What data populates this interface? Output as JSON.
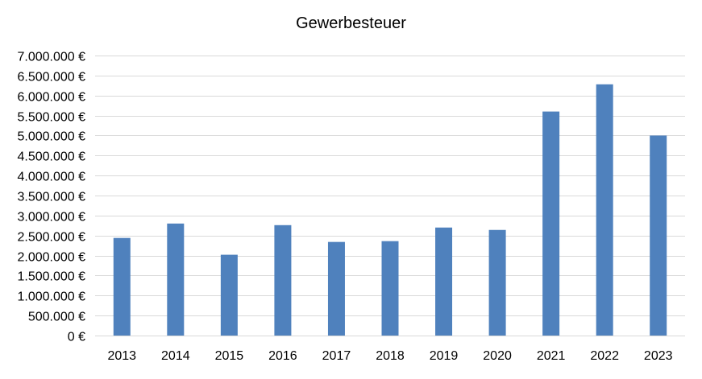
{
  "chart_data": {
    "type": "bar",
    "title": "Gewerbesteuer",
    "categories": [
      "2013",
      "2014",
      "2015",
      "2016",
      "2017",
      "2018",
      "2019",
      "2020",
      "2021",
      "2022",
      "2023"
    ],
    "series": [
      {
        "values": [
          2440000,
          2800000,
          2020000,
          2760000,
          2340000,
          2360000,
          2700000,
          2640000,
          5600000,
          6280000,
          5000000
        ],
        "color": "#4f81bd"
      }
    ],
    "ylim": [
      0,
      7000000
    ],
    "yticks": [
      0,
      500000,
      1000000,
      1500000,
      2000000,
      2500000,
      3000000,
      3500000,
      4000000,
      4500000,
      5000000,
      5500000,
      6000000,
      6500000,
      7000000
    ],
    "ytick_labels": [
      "0 €",
      "500.000 €",
      "1.000.000 €",
      "1.500.000 €",
      "2.000.000 €",
      "2.500.000 €",
      "3.000.000 €",
      "3.500.000 €",
      "4.000.000 €",
      "4.500.000 €",
      "5.000.000 €",
      "5.500.000 €",
      "6.000.000 €",
      "6.500.000 €",
      "7.000.000 €"
    ],
    "grid": true,
    "gridline_color": "#d9d9d9",
    "legend": "none"
  }
}
